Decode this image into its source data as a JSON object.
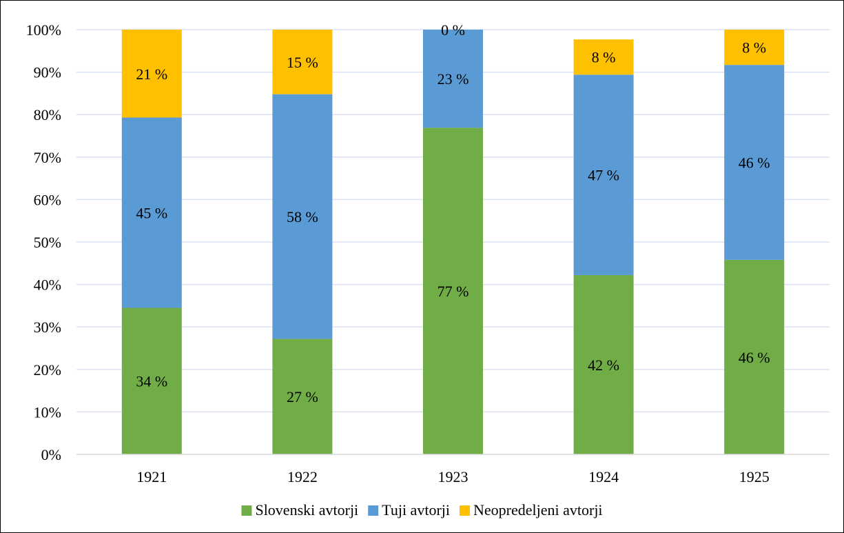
{
  "chart_data": {
    "type": "bar",
    "stacked": true,
    "categories": [
      "1921",
      "1922",
      "1923",
      "1924",
      "1925"
    ],
    "series": [
      {
        "name": "Slovenski avtorji",
        "color": "#70AD47",
        "values": [
          34.5,
          27.2,
          76.9,
          42.2,
          45.8
        ],
        "labels": [
          "34 %",
          "27 %",
          "77 %",
          "42 %",
          "46 %"
        ]
      },
      {
        "name": "Tuji avtorji",
        "color": "#5B9BD5",
        "values": [
          44.8,
          57.6,
          23.1,
          47.2,
          45.9
        ],
        "labels": [
          "45 %",
          "58 %",
          "23 %",
          "47 %",
          "46 %"
        ]
      },
      {
        "name": "Neopredeljeni avtorji",
        "color": "#FFC000",
        "values": [
          20.7,
          15.2,
          0,
          8.3,
          8.3
        ],
        "labels": [
          "21 %",
          "15 %",
          "0 %",
          "8 %",
          "8 %"
        ]
      }
    ],
    "y_ticks": [
      "0%",
      "10%",
      "20%",
      "30%",
      "40%",
      "50%",
      "60%",
      "70%",
      "80%",
      "90%",
      "100%"
    ],
    "ylim": [
      0,
      100
    ],
    "grid": true,
    "gridline_color": "#D9E1F2",
    "legend_position": "bottom"
  }
}
